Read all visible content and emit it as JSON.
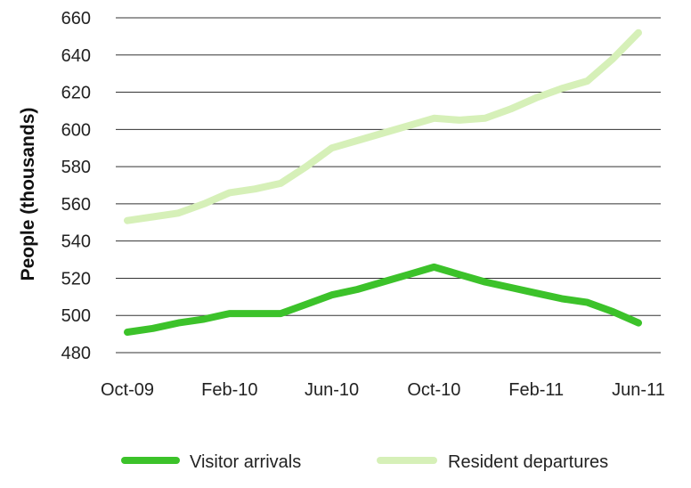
{
  "chart_data": {
    "type": "line",
    "xlabel": "",
    "ylabel": "People (thousands)",
    "ylim": [
      480,
      660
    ],
    "yticks": [
      480,
      500,
      520,
      540,
      560,
      580,
      600,
      620,
      640,
      660
    ],
    "x": [
      "Oct-09",
      "Nov-09",
      "Dec-09",
      "Jan-10",
      "Feb-10",
      "Mar-10",
      "Apr-10",
      "May-10",
      "Jun-10",
      "Jul-10",
      "Aug-10",
      "Sep-10",
      "Oct-10",
      "Nov-10",
      "Dec-10",
      "Jan-11",
      "Feb-11",
      "Mar-11",
      "Apr-11",
      "May-11",
      "Jun-11"
    ],
    "xtick_labels": [
      "Oct-09",
      "Feb-10",
      "Jun-10",
      "Oct-10",
      "Feb-11",
      "Jun-11"
    ],
    "grid": true,
    "legend_position": "bottom",
    "series": [
      {
        "name": "Visitor arrivals",
        "color": "#3cc22a",
        "values": [
          491,
          493,
          496,
          498,
          501,
          501,
          501,
          506,
          511,
          514,
          518,
          522,
          526,
          522,
          518,
          515,
          512,
          509,
          507,
          502,
          496
        ]
      },
      {
        "name": "Resident departures",
        "color": "#d6f0b8",
        "values": [
          551,
          553,
          555,
          560,
          566,
          568,
          571,
          580,
          590,
          594,
          598,
          602,
          606,
          605,
          606,
          611,
          617,
          622,
          626,
          638,
          652
        ]
      }
    ]
  }
}
